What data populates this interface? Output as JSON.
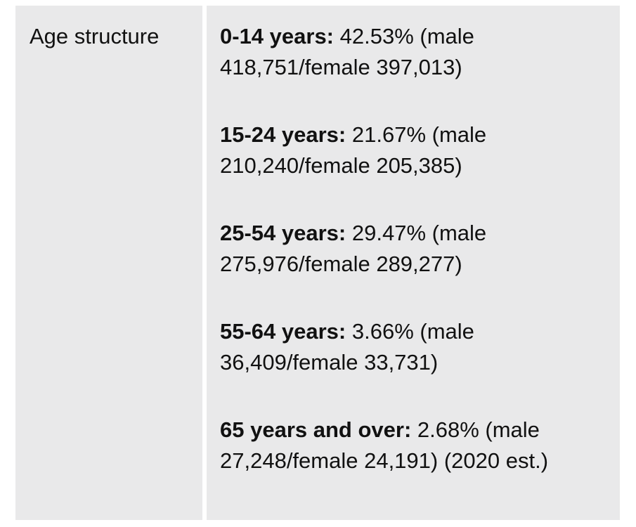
{
  "table": {
    "label": "Age structure",
    "entries": [
      {
        "label": "0-14 years:",
        "text": "42.53% (male 418,751/female 397,013)"
      },
      {
        "label": "15-24 years:",
        "text": "21.67% (male 210,240/female 205,385)"
      },
      {
        "label": "25-54 years:",
        "text": "29.47% (male 275,976/female 289,277)"
      },
      {
        "label": "55-64 years:",
        "text": "3.66% (male 36,409/female 33,731)"
      },
      {
        "label": "65 years and over:",
        "text": "2.68% (male 27,248/female 24,191) (2020 est.)"
      }
    ]
  }
}
